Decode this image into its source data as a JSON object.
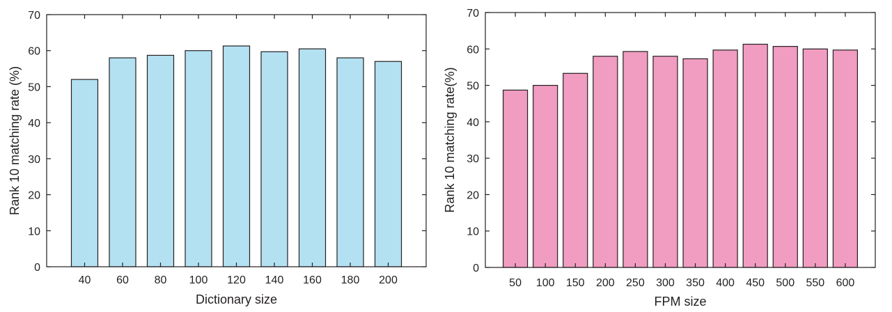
{
  "chart_data": [
    {
      "type": "bar",
      "title": "",
      "xlabel": "Dictionary size",
      "ylabel": "Rank 10 matching rate (%)",
      "ylim": [
        0,
        70
      ],
      "yticks": [
        0,
        10,
        20,
        30,
        40,
        50,
        60,
        70
      ],
      "categories": [
        "40",
        "60",
        "80",
        "100",
        "120",
        "140",
        "160",
        "180",
        "200"
      ],
      "values": [
        52,
        58,
        58.7,
        60,
        61.3,
        59.7,
        60.5,
        58,
        57
      ],
      "grid": false,
      "colors": {
        "bar_fill": "#b3e1f2",
        "bar_stroke": "#231f20"
      }
    },
    {
      "type": "bar",
      "title": "",
      "xlabel": "FPM size",
      "ylabel": "Rank 10 matching rate(%)",
      "ylim": [
        0,
        70
      ],
      "yticks": [
        0,
        10,
        20,
        30,
        40,
        50,
        60,
        70
      ],
      "categories": [
        "50",
        "100",
        "150",
        "200",
        "250",
        "300",
        "350",
        "400",
        "450",
        "500",
        "550",
        "600"
      ],
      "values": [
        48.7,
        50,
        53.3,
        58,
        59.3,
        58,
        57.3,
        59.7,
        61.3,
        60.7,
        60,
        59.7
      ],
      "grid": false,
      "colors": {
        "bar_fill": "#f19cc1",
        "bar_stroke": "#231f20"
      }
    }
  ]
}
